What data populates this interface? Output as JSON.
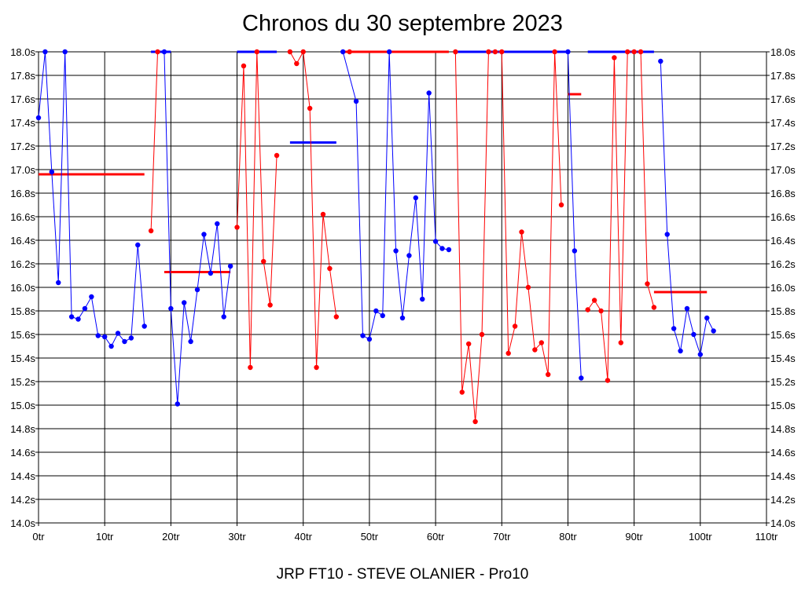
{
  "chart_data": {
    "type": "line",
    "title": "Chronos du 30 septembre 2023",
    "footer": "JRP FT10 - STEVE OLANIER - Pro10",
    "xlim": [
      0,
      110
    ],
    "ylim": [
      14.0,
      18.0
    ],
    "x_ticks": [
      "0tr",
      "10tr",
      "20tr",
      "30tr",
      "40tr",
      "50tr",
      "60tr",
      "70tr",
      "80tr",
      "90tr",
      "100tr",
      "110tr"
    ],
    "y_ticks": [
      "14.0s",
      "14.2s",
      "14.4s",
      "14.6s",
      "14.8s",
      "15.0s",
      "15.2s",
      "15.4s",
      "15.6s",
      "15.8s",
      "16.0s",
      "16.2s",
      "16.4s",
      "16.6s",
      "16.8s",
      "17.0s",
      "17.2s",
      "17.4s",
      "17.6s",
      "17.8s",
      "18.0s"
    ],
    "grid": true,
    "colors": {
      "blue": "#0000ff",
      "red": "#ff0000"
    },
    "series": [
      {
        "color": "blue",
        "points": [
          [
            0,
            17.44
          ],
          [
            1,
            18.0
          ],
          [
            2,
            16.98
          ],
          [
            3,
            16.04
          ],
          [
            4,
            18.0
          ],
          [
            5,
            15.75
          ],
          [
            6,
            15.73
          ],
          [
            7,
            15.82
          ],
          [
            8,
            15.92
          ],
          [
            9,
            15.59
          ],
          [
            10,
            15.58
          ],
          [
            11,
            15.5
          ],
          [
            12,
            15.61
          ],
          [
            13,
            15.54
          ],
          [
            14,
            15.57
          ],
          [
            15,
            16.36
          ],
          [
            16,
            15.67
          ]
        ]
      },
      {
        "color": "red",
        "points": [
          [
            17,
            16.48
          ],
          [
            18,
            18.0
          ]
        ]
      },
      {
        "color": "blue",
        "points": [
          [
            19,
            18.0
          ],
          [
            20,
            15.82
          ],
          [
            21,
            15.01
          ],
          [
            22,
            15.87
          ],
          [
            23,
            15.54
          ],
          [
            24,
            15.98
          ],
          [
            25,
            16.45
          ],
          [
            26,
            16.12
          ],
          [
            27,
            16.54
          ],
          [
            28,
            15.75
          ],
          [
            29,
            16.18
          ]
        ]
      },
      {
        "color": "red",
        "points": [
          [
            30,
            16.51
          ],
          [
            31,
            17.88
          ],
          [
            32,
            15.32
          ],
          [
            33,
            18.0
          ],
          [
            34,
            16.22
          ],
          [
            35,
            15.85
          ],
          [
            36,
            17.12
          ]
        ]
      },
      {
        "color": "red",
        "points": [
          [
            38,
            18.0
          ],
          [
            39,
            17.9
          ],
          [
            40,
            18.0
          ],
          [
            41,
            17.52
          ],
          [
            42,
            15.32
          ],
          [
            43,
            16.62
          ],
          [
            44,
            16.16
          ],
          [
            45,
            15.75
          ]
        ]
      },
      {
        "color": "blue",
        "points": [
          [
            46,
            18.0
          ],
          [
            48,
            17.58
          ],
          [
            49,
            15.59
          ],
          [
            50,
            15.56
          ],
          [
            51,
            15.8
          ],
          [
            52,
            15.76
          ],
          [
            53,
            18.0
          ],
          [
            54,
            16.31
          ],
          [
            55,
            15.74
          ],
          [
            56,
            16.27
          ],
          [
            57,
            16.76
          ],
          [
            58,
            15.9
          ],
          [
            59,
            17.65
          ],
          [
            60,
            16.39
          ],
          [
            61,
            16.33
          ],
          [
            62,
            16.32
          ]
        ]
      },
      {
        "color": "red",
        "points": [
          [
            47,
            18.0
          ]
        ]
      },
      {
        "color": "red",
        "points": [
          [
            63,
            18.0
          ],
          [
            64,
            15.11
          ],
          [
            65,
            15.52
          ],
          [
            66,
            14.86
          ],
          [
            67,
            15.6
          ],
          [
            68,
            18.0
          ],
          [
            69,
            18.0
          ],
          [
            70,
            18.0
          ],
          [
            71,
            15.44
          ],
          [
            72,
            15.67
          ],
          [
            73,
            16.47
          ],
          [
            74,
            16.0
          ],
          [
            75,
            15.47
          ],
          [
            76,
            15.53
          ],
          [
            77,
            15.26
          ],
          [
            78,
            18.0
          ],
          [
            79,
            16.7
          ]
        ]
      },
      {
        "color": "blue",
        "points": [
          [
            80,
            18.0
          ],
          [
            81,
            16.31
          ],
          [
            82,
            15.23
          ]
        ]
      },
      {
        "color": "red",
        "points": [
          [
            83,
            15.81
          ],
          [
            84,
            15.89
          ],
          [
            85,
            15.8
          ],
          [
            86,
            15.21
          ],
          [
            87,
            17.95
          ],
          [
            88,
            15.53
          ],
          [
            89,
            18.0
          ],
          [
            90,
            18.0
          ],
          [
            91,
            18.0
          ],
          [
            92,
            16.03
          ],
          [
            93,
            15.83
          ]
        ]
      },
      {
        "color": "blue",
        "points": [
          [
            94,
            17.92
          ],
          [
            95,
            16.45
          ],
          [
            96,
            15.65
          ],
          [
            97,
            15.46
          ],
          [
            98,
            15.82
          ],
          [
            99,
            15.6
          ],
          [
            100,
            15.43
          ],
          [
            101,
            15.74
          ],
          [
            102,
            15.63
          ]
        ]
      }
    ],
    "average_lines": [
      {
        "color": "red",
        "x": [
          0,
          16
        ],
        "y": 16.96
      },
      {
        "color": "blue",
        "x": [
          17,
          20
        ],
        "y": 18.0
      },
      {
        "color": "red",
        "x": [
          19,
          29
        ],
        "y": 16.13
      },
      {
        "color": "blue",
        "x": [
          30,
          36
        ],
        "y": 18.0
      },
      {
        "color": "blue",
        "x": [
          38,
          45
        ],
        "y": 17.23
      },
      {
        "color": "red",
        "x": [
          46,
          62
        ],
        "y": 18.0
      },
      {
        "color": "blue",
        "x": [
          63,
          80
        ],
        "y": 18.0
      },
      {
        "color": "red",
        "x": [
          80,
          82
        ],
        "y": 17.64
      },
      {
        "color": "blue",
        "x": [
          83,
          93
        ],
        "y": 18.0
      },
      {
        "color": "red",
        "x": [
          93,
          101
        ],
        "y": 15.96
      }
    ]
  }
}
